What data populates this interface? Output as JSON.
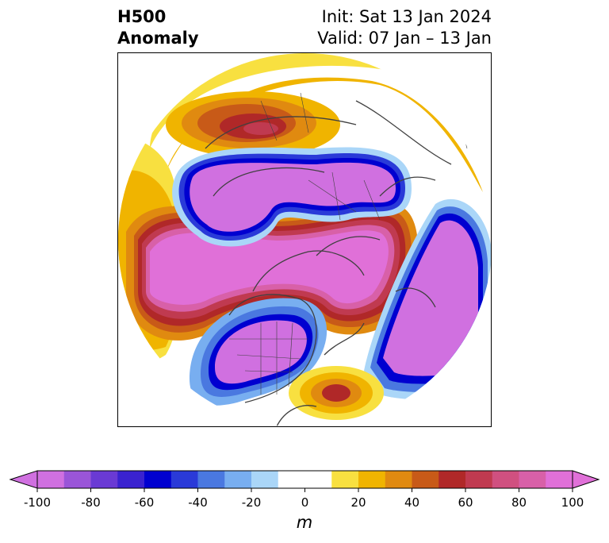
{
  "title": {
    "left_line1": "H500",
    "left_line2": "Anomaly",
    "right_line1": "Init: Sat 13 Jan 2024",
    "right_line2": "Valid: 07 Jan – 13 Jan"
  },
  "colorbar": {
    "unit_label": "m",
    "ticks": [
      "-100",
      "-80",
      "-60",
      "-40",
      "-20",
      "0",
      "20",
      "40",
      "60",
      "80",
      "100"
    ],
    "colors": [
      "#d070e0",
      "#9a55d8",
      "#6a3ad4",
      "#3a22d0",
      "#0000d0",
      "#2a3ad8",
      "#4a78e0",
      "#78aef0",
      "#aad6f8",
      "#ffffff",
      "#ffffff",
      "#f8e040",
      "#f0b400",
      "#e08a10",
      "#c85a18",
      "#b02828",
      "#c03a50",
      "#d05080",
      "#d860a8",
      "#e070d8"
    ],
    "extend_min_color": "#d070e0",
    "extend_max_color": "#e070d8"
  },
  "map": {
    "projection": "north polar stereographic",
    "features": [
      "coastlines",
      "country borders",
      "us state borders"
    ]
  }
}
